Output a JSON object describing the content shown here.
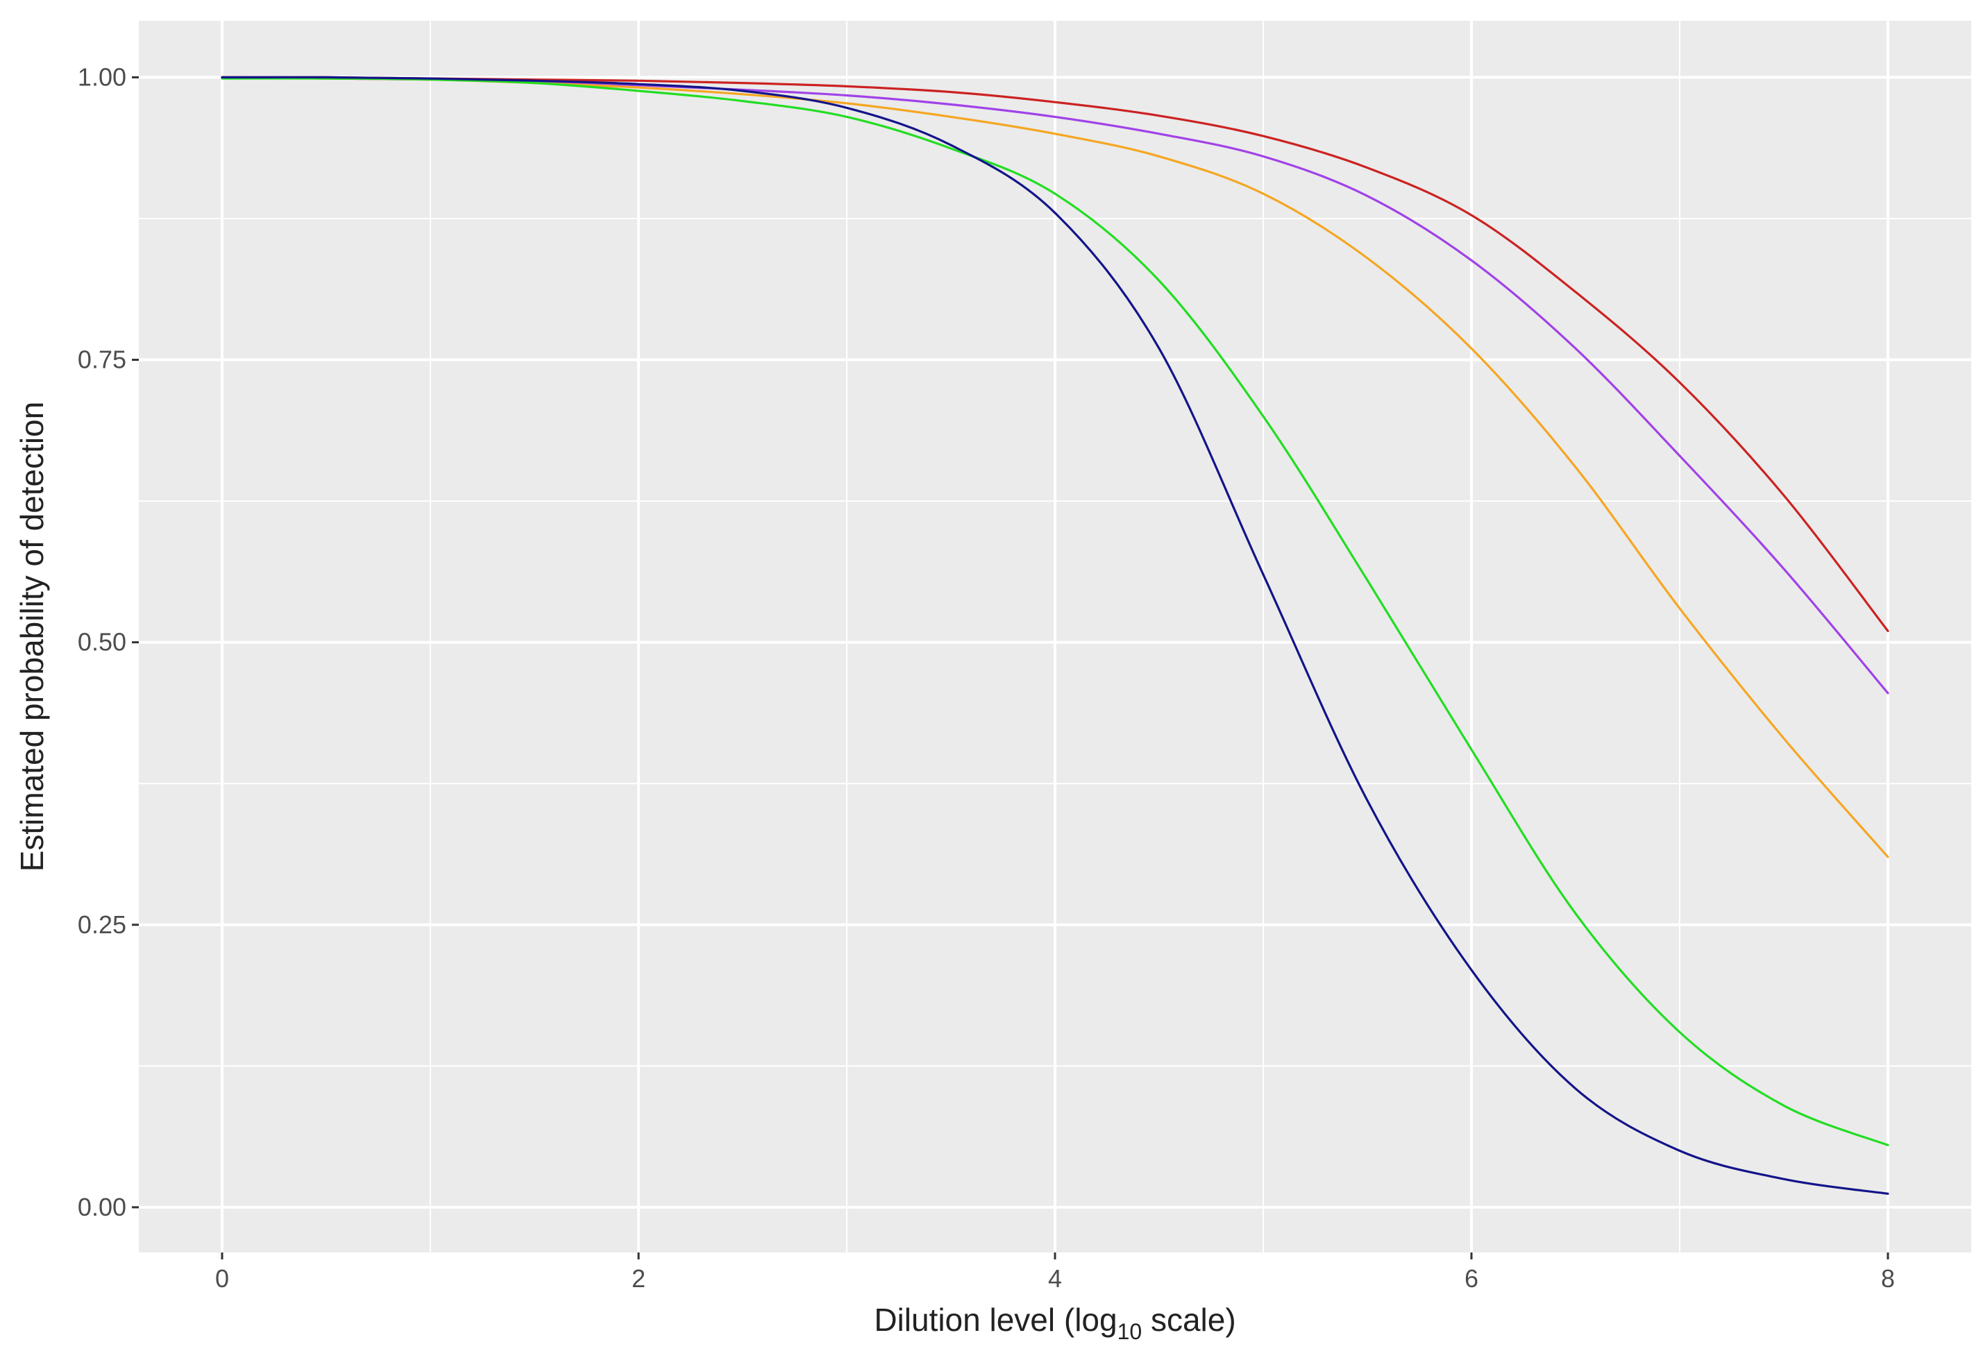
{
  "chart_data": {
    "type": "line",
    "title": "",
    "xlabel_main": "Dilution level (log",
    "xlabel_sub": "10",
    "xlabel_tail": " scale)",
    "ylabel": "Estimated probability of detection",
    "xlim": [
      -0.4,
      8.4
    ],
    "ylim": [
      -0.04,
      1.05
    ],
    "x_ticks": [
      0,
      2,
      4,
      6,
      8
    ],
    "x_tick_labels": [
      "0",
      "2",
      "4",
      "6",
      "8"
    ],
    "x_minor_ticks": [
      1,
      3,
      5,
      7
    ],
    "y_ticks": [
      0,
      0.25,
      0.5,
      0.75,
      1
    ],
    "y_tick_labels": [
      "0.00",
      "0.25",
      "0.50",
      "0.75",
      "1.00"
    ],
    "y_minor_ticks": [
      0.125,
      0.375,
      0.625,
      0.875
    ],
    "grid": true,
    "legend": "none",
    "x": [
      0,
      0.5,
      1,
      1.5,
      2,
      2.5,
      3,
      3.5,
      4,
      4.5,
      5,
      5.5,
      6,
      6.5,
      7,
      7.5,
      8
    ],
    "series": [
      {
        "color": "#cc2222",
        "values": [
          1.0,
          1.0,
          0.999,
          0.998,
          0.997,
          0.995,
          0.992,
          0.987,
          0.978,
          0.966,
          0.948,
          0.92,
          0.878,
          0.81,
          0.73,
          0.63,
          0.51
        ]
      },
      {
        "color": "#a042e8",
        "values": [
          1.0,
          0.999,
          0.998,
          0.996,
          0.993,
          0.989,
          0.984,
          0.976,
          0.965,
          0.95,
          0.93,
          0.895,
          0.838,
          0.76,
          0.665,
          0.565,
          0.455
        ]
      },
      {
        "color": "#f5a623",
        "values": [
          1.0,
          0.999,
          0.998,
          0.995,
          0.991,
          0.985,
          0.977,
          0.965,
          0.95,
          0.93,
          0.897,
          0.84,
          0.76,
          0.655,
          0.53,
          0.415,
          0.31
        ]
      },
      {
        "color": "#22dd22",
        "values": [
          0.999,
          0.999,
          0.998,
          0.995,
          0.988,
          0.979,
          0.965,
          0.937,
          0.897,
          0.82,
          0.7,
          0.555,
          0.405,
          0.26,
          0.155,
          0.09,
          0.055
        ]
      },
      {
        "color": "#14148a",
        "values": [
          1.0,
          1.0,
          0.999,
          0.997,
          0.994,
          0.988,
          0.973,
          0.94,
          0.88,
          0.76,
          0.56,
          0.36,
          0.21,
          0.105,
          0.05,
          0.025,
          0.012
        ]
      }
    ]
  }
}
